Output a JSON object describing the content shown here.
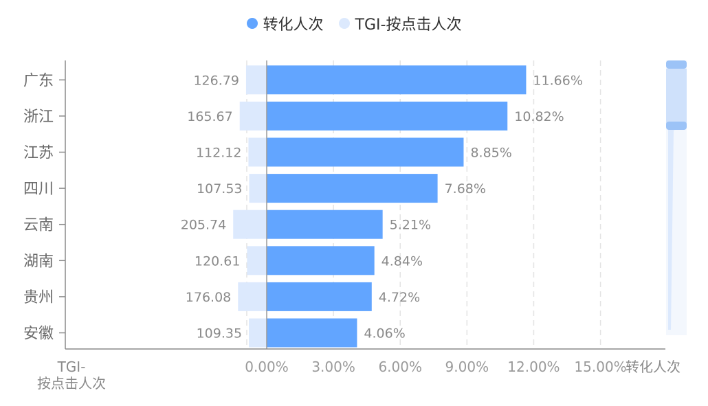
{
  "legend": {
    "items": [
      {
        "label": "转化人次",
        "color": "#62a5ff"
      },
      {
        "label": "TGI-按点击人次",
        "color": "#dce9fd"
      }
    ]
  },
  "chart_data": {
    "type": "bar",
    "orientation": "horizontal",
    "categories": [
      "广东",
      "浙江",
      "江苏",
      "四川",
      "云南",
      "湖南",
      "贵州",
      "安徽"
    ],
    "series": [
      {
        "name": "转化人次",
        "values": [
          11.66,
          10.82,
          8.85,
          7.68,
          5.21,
          4.84,
          4.72,
          4.06
        ],
        "labels": [
          "11.66%",
          "10.82%",
          "8.85%",
          "7.68%",
          "5.21%",
          "4.84%",
          "4.72%",
          "4.06%"
        ],
        "color": "#62a5ff"
      },
      {
        "name": "TGI-按点击人次",
        "values": [
          126.79,
          165.67,
          112.12,
          107.53,
          205.74,
          120.61,
          176.08,
          109.35
        ],
        "labels": [
          "126.79",
          "165.67",
          "112.12",
          "107.53",
          "205.74",
          "120.61",
          "176.08",
          "109.35"
        ],
        "color": "#dce9fd"
      }
    ],
    "x_axis": {
      "name": "转化人次",
      "ticks": [
        0,
        3,
        6,
        9,
        12,
        15
      ],
      "tick_labels": [
        "0.00%",
        "3.00%",
        "6.00%",
        "9.00%",
        "12.00%",
        "15.00%"
      ],
      "range": [
        0,
        18
      ]
    },
    "x2_axis": {
      "name": "TGI-按点击人次",
      "name_lines": [
        "TGI-",
        "按点击人次"
      ]
    },
    "grid": "vertical dashed",
    "legend_position": "top-center",
    "scrollbar": "right"
  }
}
